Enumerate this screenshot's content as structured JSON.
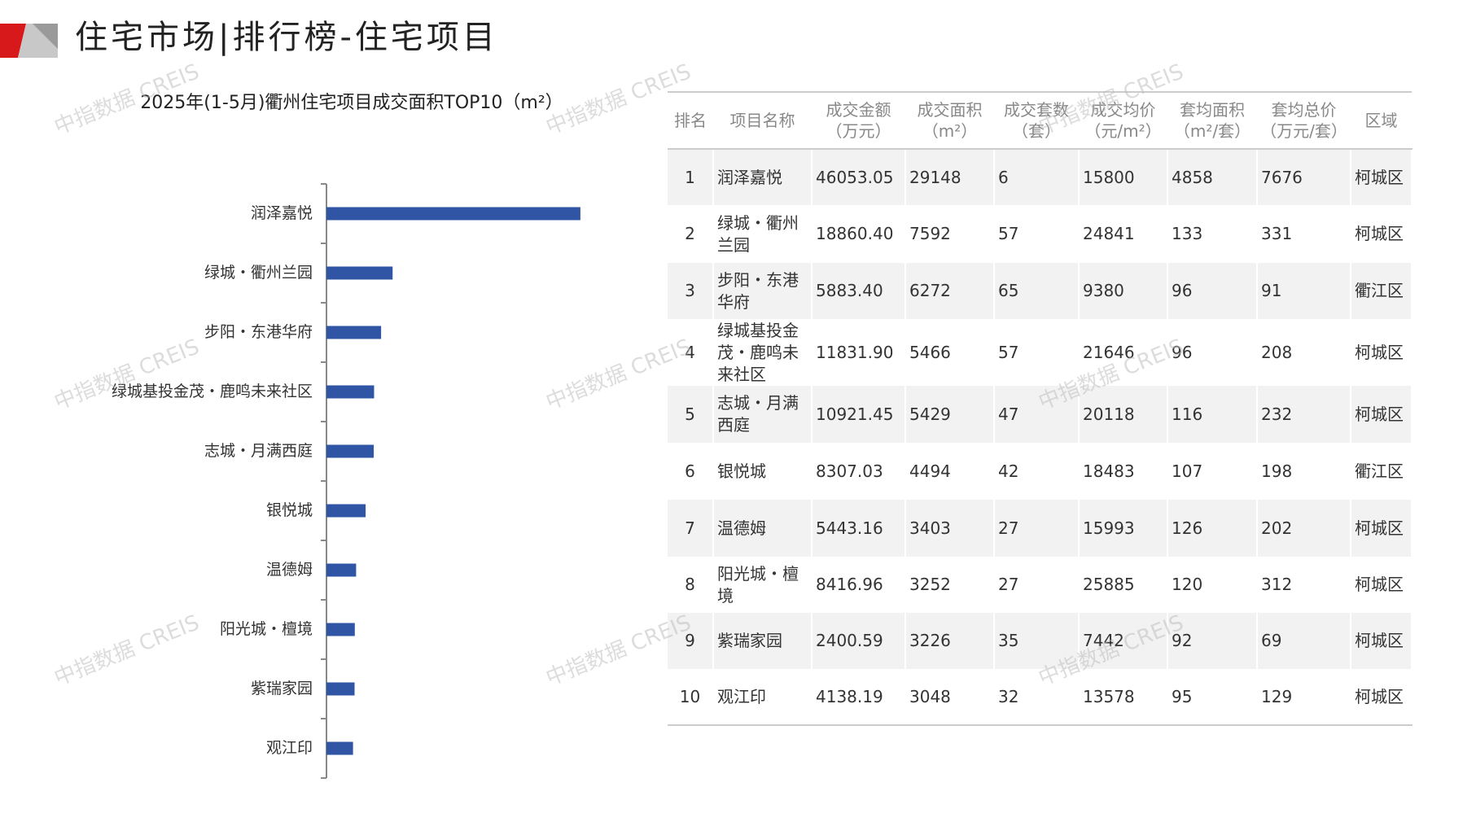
{
  "header": {
    "title": "住宅市场|排行榜-住宅项目"
  },
  "watermark": "中指数据 CREIS",
  "chart_data": {
    "type": "bar",
    "orientation": "horizontal",
    "title": "2025年(1-5月)衢州住宅项目成交面积TOP10（m²）",
    "categories": [
      "润泽嘉悦",
      "绿城・衢州兰园",
      "步阳・东港华府",
      "绿城基投金茂・鹿鸣未来社区",
      "志城・月满西庭",
      "银悦城",
      "温德姆",
      "阳光城・檀境",
      "紫瑞家园",
      "观江印"
    ],
    "values": [
      29148,
      7592,
      6272,
      5466,
      5429,
      4494,
      3403,
      3252,
      3226,
      3048
    ],
    "color": "#2f55a4",
    "xlim": [
      0,
      30000
    ]
  },
  "table": {
    "columns": [
      [
        "排名"
      ],
      [
        "项目名称"
      ],
      [
        "成交金额",
        "（万元）"
      ],
      [
        "成交面积",
        "（m²）"
      ],
      [
        "成交套数",
        "（套）"
      ],
      [
        "成交均价",
        "（元/m²）"
      ],
      [
        "套均面积",
        "（m²/套）"
      ],
      [
        "套均总价",
        "（万元/套）"
      ],
      [
        "区域"
      ]
    ],
    "rows": [
      [
        "1",
        "润泽嘉悦",
        "46053.05",
        "29148",
        "6",
        "15800",
        "4858",
        "7676",
        "柯城区"
      ],
      [
        "2",
        "绿城・衢州兰园",
        "18860.40",
        "7592",
        "57",
        "24841",
        "133",
        "331",
        "柯城区"
      ],
      [
        "3",
        "步阳・东港华府",
        "5883.40",
        "6272",
        "65",
        "9380",
        "96",
        "91",
        "衢江区"
      ],
      [
        "4",
        "绿城基投金茂・鹿鸣未来社区",
        "11831.90",
        "5466",
        "57",
        "21646",
        "96",
        "208",
        "柯城区"
      ],
      [
        "5",
        "志城・月满西庭",
        "10921.45",
        "5429",
        "47",
        "20118",
        "116",
        "232",
        "柯城区"
      ],
      [
        "6",
        "银悦城",
        "8307.03",
        "4494",
        "42",
        "18483",
        "107",
        "198",
        "衢江区"
      ],
      [
        "7",
        "温德姆",
        "5443.16",
        "3403",
        "27",
        "15993",
        "126",
        "202",
        "柯城区"
      ],
      [
        "8",
        "阳光城・檀境",
        "8416.96",
        "3252",
        "27",
        "25885",
        "120",
        "312",
        "柯城区"
      ],
      [
        "9",
        "紫瑞家园",
        "2400.59",
        "3226",
        "35",
        "7442",
        "92",
        "69",
        "柯城区"
      ],
      [
        "10",
        "观江印",
        "4138.19",
        "3048",
        "32",
        "13578",
        "95",
        "129",
        "柯城区"
      ]
    ]
  }
}
